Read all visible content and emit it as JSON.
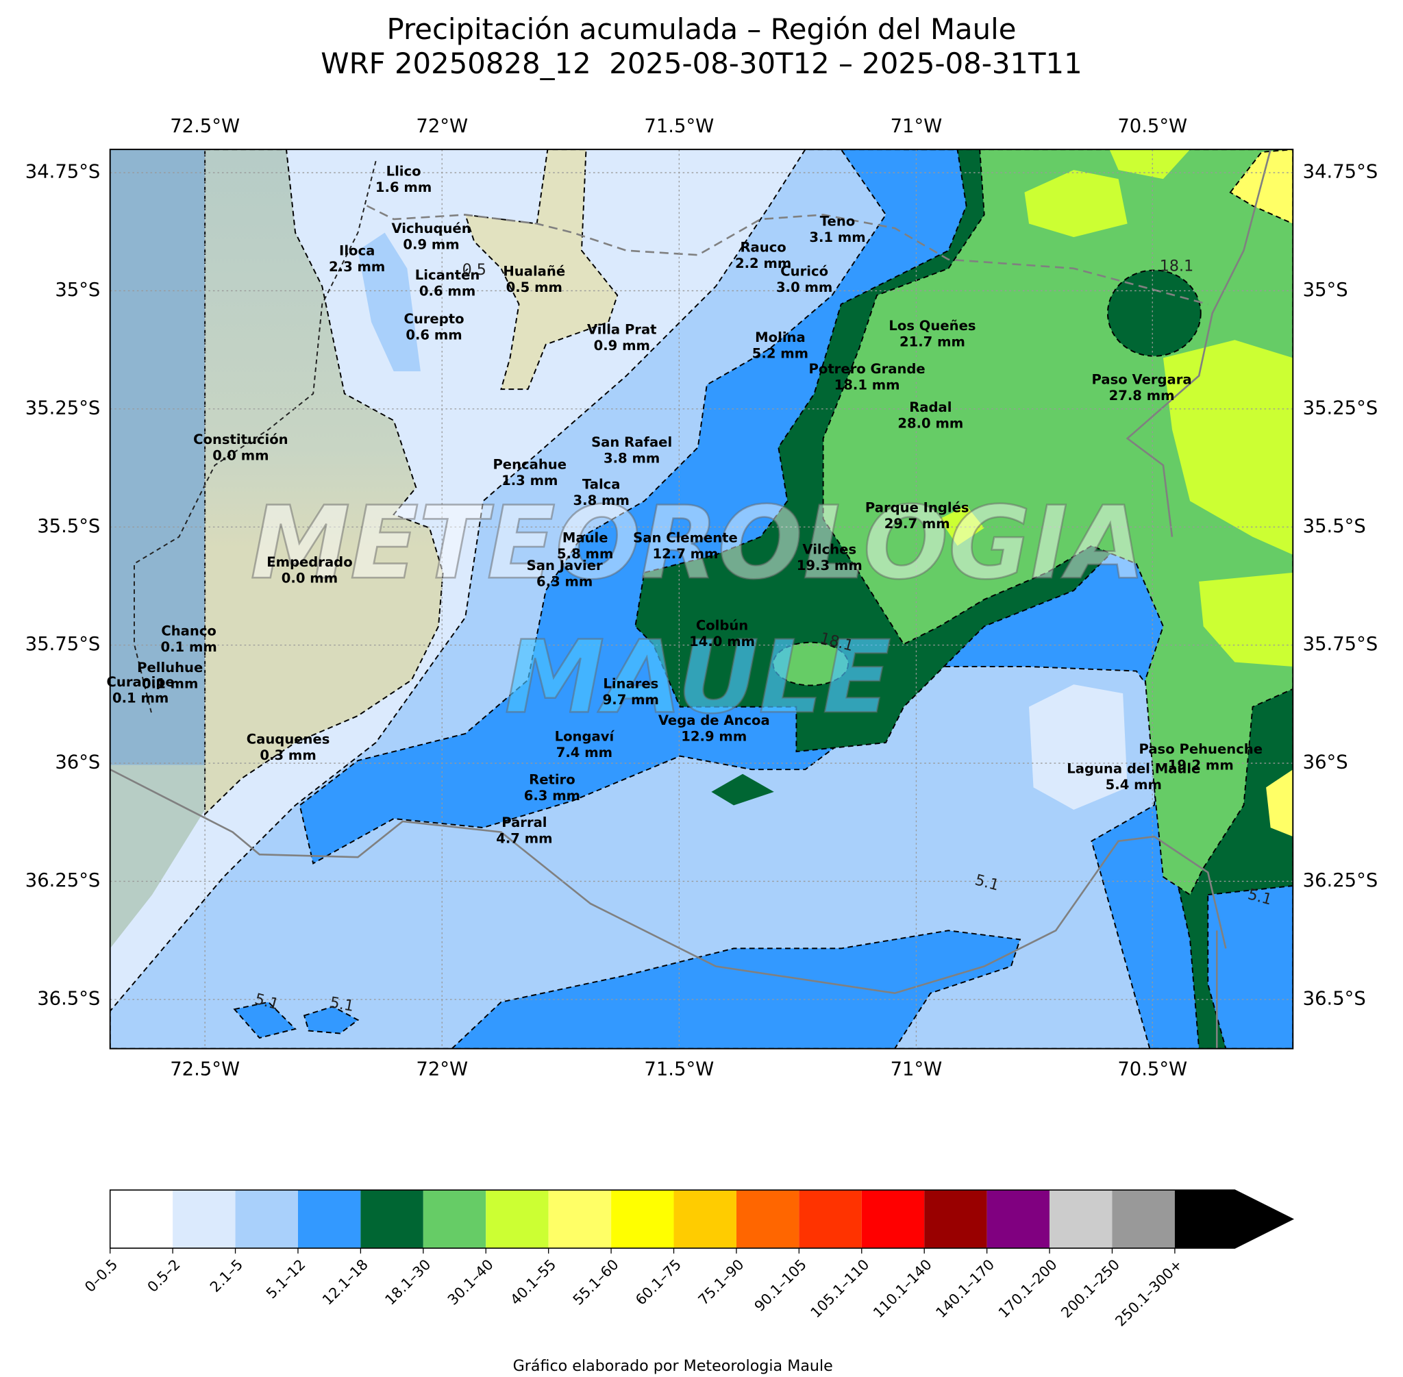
{
  "title": "Precipitación acumulada – Región del Maule",
  "subtitle": "WRF 20250828_12  2025-08-30T12 – 2025-08-31T11",
  "map": {
    "lon_ticks": [
      "72.5°W",
      "72°W",
      "71.5°W",
      "71°W",
      "70.5°W"
    ],
    "lat_ticks": [
      "34.75°S",
      "35°S",
      "35.25°S",
      "35.5°S",
      "35.75°S",
      "36°S",
      "36.25°S",
      "36.5°S"
    ],
    "stations": [
      {
        "name": "Llico",
        "precip": "1.6 mm"
      },
      {
        "name": "Vichuquén",
        "precip": "0.9 mm"
      },
      {
        "name": "Iloca",
        "precip": "2.3 mm"
      },
      {
        "name": "Licantén",
        "precip": "0.6 mm"
      },
      {
        "name": "Hualañé",
        "precip": "0.5 mm"
      },
      {
        "name": "Curepto",
        "precip": "0.6 mm"
      },
      {
        "name": "Villa Prat",
        "precip": "0.9 mm"
      },
      {
        "name": "Teno",
        "precip": "3.1 mm"
      },
      {
        "name": "Rauco",
        "precip": "2.2 mm"
      },
      {
        "name": "Curicó",
        "precip": "3.0 mm"
      },
      {
        "name": "Molina",
        "precip": "5.2 mm"
      },
      {
        "name": "Los Queñes",
        "precip": "21.7 mm"
      },
      {
        "name": "Potrero Grande",
        "precip": "18.1 mm"
      },
      {
        "name": "Paso Vergara",
        "precip": "27.8 mm"
      },
      {
        "name": "Radal",
        "precip": "28.0 mm"
      },
      {
        "name": "Constitución",
        "precip": "0.0 mm"
      },
      {
        "name": "San Rafael",
        "precip": "3.8 mm"
      },
      {
        "name": "Pencahue",
        "precip": "1.3 mm"
      },
      {
        "name": "Talca",
        "precip": "3.8 mm"
      },
      {
        "name": "Parque Inglés",
        "precip": "29.7 mm"
      },
      {
        "name": "Maule",
        "precip": "5.8 mm"
      },
      {
        "name": "San Clemente",
        "precip": "12.7 mm"
      },
      {
        "name": "San Javier",
        "precip": "6.3 mm"
      },
      {
        "name": "Empedrado",
        "precip": "0.0 mm"
      },
      {
        "name": "Vilches",
        "precip": "19.3 mm"
      },
      {
        "name": "Colbún",
        "precip": "14.0 mm"
      },
      {
        "name": "Chanco",
        "precip": "0.1 mm"
      },
      {
        "name": "Pelluhue",
        "precip": "0.1 mm"
      },
      {
        "name": "Curanipe",
        "precip": "0.1 mm"
      },
      {
        "name": "Linares",
        "precip": "9.7 mm"
      },
      {
        "name": "Vega de Ancoa",
        "precip": "12.9 mm"
      },
      {
        "name": "Longaví",
        "precip": "7.4 mm"
      },
      {
        "name": "Cauquenes",
        "precip": "0.3 mm"
      },
      {
        "name": "Paso Pehuenche",
        "precip": "19.2 mm"
      },
      {
        "name": "Laguna del Maule",
        "precip": "5.4 mm"
      },
      {
        "name": "Retiro",
        "precip": "6.3 mm"
      },
      {
        "name": "Parral",
        "precip": "4.7 mm"
      }
    ],
    "contour_labels": [
      "0.5",
      "18.1",
      "18.1",
      "5.1",
      "5.1",
      "5.1",
      "5.1"
    ],
    "watermark": [
      "METEOROLOGIA",
      "MAULE"
    ]
  },
  "colorbar": {
    "items": [
      {
        "label": "0–0.5",
        "color": "#ffffff"
      },
      {
        "label": "0.5–2",
        "color": "#dbeafd"
      },
      {
        "label": "2.1–5",
        "color": "#a9d0fb"
      },
      {
        "label": "5.1–12",
        "color": "#3399ff"
      },
      {
        "label": "12.1–18",
        "color": "#006633"
      },
      {
        "label": "18.1–30",
        "color": "#66cc66"
      },
      {
        "label": "30.1–40",
        "color": "#ccff33"
      },
      {
        "label": "40.1–55",
        "color": "#ffff66"
      },
      {
        "label": "55.1–60",
        "color": "#ffff00"
      },
      {
        "label": "60.1–75",
        "color": "#ffcc00"
      },
      {
        "label": "75.1–90",
        "color": "#ff6600"
      },
      {
        "label": "90.1–105",
        "color": "#ff3300"
      },
      {
        "label": "105.1–110",
        "color": "#ff0000"
      },
      {
        "label": "110.1–140",
        "color": "#990000"
      },
      {
        "label": "140.1–170",
        "color": "#800080"
      },
      {
        "label": "170.1–200",
        "color": "#cccccc"
      },
      {
        "label": "200.1–250",
        "color": "#999999"
      },
      {
        "label": "250.1–300+",
        "color": "#000000"
      }
    ]
  },
  "footer": "Gráfico elaborado por Meteorologia Maule"
}
